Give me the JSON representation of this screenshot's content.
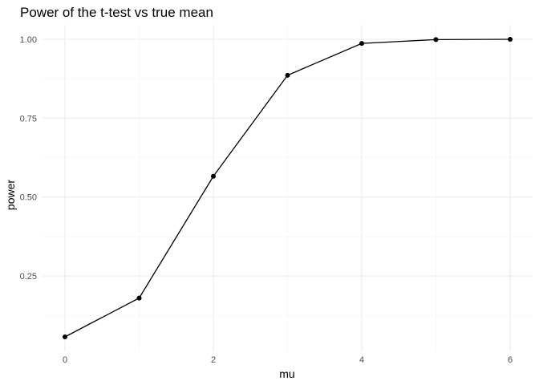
{
  "chart_data": {
    "type": "line",
    "title": "Power of the t-test vs true mean",
    "xlabel": "mu",
    "ylabel": "power",
    "x": [
      0,
      1,
      2,
      3,
      4,
      5,
      6
    ],
    "series": [
      {
        "values": [
          0.057,
          0.18,
          0.566,
          0.886,
          0.987,
          0.999,
          1.0
        ]
      }
    ],
    "xlim": [
      0,
      6
    ],
    "ylim": [
      0.057,
      1.0
    ],
    "x_ticks": [
      0,
      2,
      4,
      6
    ],
    "x_tick_labels": [
      "0",
      "2",
      "4",
      "6"
    ],
    "y_ticks": [
      0.25,
      0.5,
      0.75,
      1.0
    ],
    "y_tick_labels": [
      "0.25",
      "0.50",
      "0.75",
      "1.00"
    ],
    "grid": true,
    "legend": "none",
    "line_color": "#000000",
    "point_color": "#000000",
    "grid_color": "#ebebeb"
  }
}
